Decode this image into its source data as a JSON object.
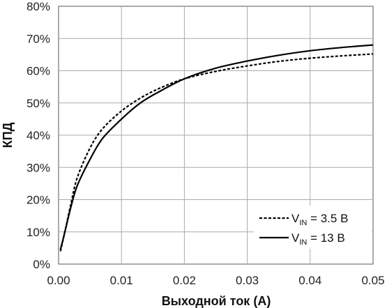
{
  "chart_data": {
    "type": "line",
    "xlabel": "Выходной ток (А)",
    "ylabel": "КПД",
    "xlim": [
      0,
      0.05
    ],
    "ylim": [
      0,
      80
    ],
    "x_ticks": [
      "0.00",
      "0.01",
      "0.02",
      "0.03",
      "0.04",
      "0.05"
    ],
    "y_ticks": [
      "0%",
      "10%",
      "20%",
      "30%",
      "40%",
      "50%",
      "60%",
      "70%",
      "80%"
    ],
    "grid": true,
    "legend_position": "bottom-right",
    "series": [
      {
        "name_main": "V",
        "name_sub": "IN",
        "name_rest": " = 3.5 В",
        "style": "dashed",
        "color": "#000000",
        "points": [
          [
            0.0003,
            4
          ],
          [
            0.001,
            10
          ],
          [
            0.002,
            19
          ],
          [
            0.003,
            27
          ],
          [
            0.005,
            36
          ],
          [
            0.007,
            42
          ],
          [
            0.01,
            47.5
          ],
          [
            0.013,
            51.5
          ],
          [
            0.016,
            54.5
          ],
          [
            0.02,
            57.5
          ],
          [
            0.025,
            59.8
          ],
          [
            0.03,
            61.5
          ],
          [
            0.035,
            62.9
          ],
          [
            0.04,
            63.9
          ],
          [
            0.045,
            64.6
          ],
          [
            0.05,
            65.2
          ]
        ]
      },
      {
        "name_main": "V",
        "name_sub": "IN",
        "name_rest": " = 13 В",
        "style": "solid",
        "color": "#000000",
        "points": [
          [
            0.0003,
            4.5
          ],
          [
            0.001,
            10
          ],
          [
            0.002,
            18
          ],
          [
            0.003,
            24.5
          ],
          [
            0.005,
            32.5
          ],
          [
            0.007,
            39
          ],
          [
            0.01,
            45
          ],
          [
            0.013,
            50
          ],
          [
            0.016,
            53.5
          ],
          [
            0.02,
            57.5
          ],
          [
            0.025,
            60.8
          ],
          [
            0.03,
            63
          ],
          [
            0.035,
            64.8
          ],
          [
            0.04,
            66.2
          ],
          [
            0.045,
            67.2
          ],
          [
            0.05,
            68
          ]
        ]
      }
    ]
  }
}
